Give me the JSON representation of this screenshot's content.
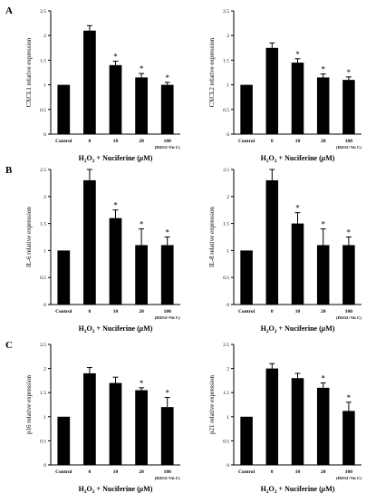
{
  "panel_letters": [
    "A",
    "B",
    "C"
  ],
  "chart_data": [
    {
      "type": "bar",
      "panel": "A",
      "ylabel": "CXCL1 relative expression",
      "xlabel": "H2O2 + Nuciferine (μM)",
      "categories": [
        "Control",
        "0",
        "10",
        "20",
        "100"
      ],
      "category_sublabels": [
        "",
        "",
        "",
        "",
        "(H2O2+Vit C)"
      ],
      "values": [
        1.0,
        2.1,
        1.4,
        1.15,
        1.0
      ],
      "errors": [
        0,
        0.1,
        0.08,
        0.08,
        0.05
      ],
      "significant": [
        false,
        false,
        true,
        true,
        true
      ],
      "ylim": [
        0,
        2.5
      ],
      "yticks": [
        "0",
        "0.5",
        "1",
        "1.5",
        "2",
        "2.5"
      ]
    },
    {
      "type": "bar",
      "panel": "A",
      "ylabel": "CXCL2 relative expression",
      "xlabel": "H2O2 + Nuciferine (μM)",
      "categories": [
        "Control",
        "0",
        "10",
        "20",
        "100"
      ],
      "category_sublabels": [
        "",
        "",
        "",
        "",
        "(H2O2+Vit C)"
      ],
      "values": [
        1.0,
        1.75,
        1.45,
        1.15,
        1.1
      ],
      "errors": [
        0,
        0.1,
        0.08,
        0.07,
        0.06
      ],
      "significant": [
        false,
        false,
        true,
        true,
        true
      ],
      "ylim": [
        0,
        2.5
      ],
      "yticks": [
        "0",
        "0.5",
        "1",
        "1.5",
        "2",
        "2.5"
      ]
    },
    {
      "type": "bar",
      "panel": "B",
      "ylabel": "IL-6 relative expression",
      "xlabel": "H2O2 + Nuciferine (μM)",
      "categories": [
        "Control",
        "0",
        "10",
        "20",
        "100"
      ],
      "category_sublabels": [
        "",
        "",
        "",
        "",
        "(H2O2+Vit C)"
      ],
      "values": [
        1.0,
        2.3,
        1.6,
        1.1,
        1.1
      ],
      "errors": [
        0,
        0.2,
        0.15,
        0.3,
        0.15
      ],
      "significant": [
        false,
        false,
        true,
        true,
        true
      ],
      "ylim": [
        0,
        2.5
      ],
      "yticks": [
        "0",
        "0.5",
        "1",
        "1.5",
        "2",
        "2.5"
      ]
    },
    {
      "type": "bar",
      "panel": "B",
      "ylabel": "IL-8 relative expression",
      "xlabel": "H2O2 + Nuciferine (μM)",
      "categories": [
        "Control",
        "0",
        "10",
        "20",
        "100"
      ],
      "category_sublabels": [
        "",
        "",
        "",
        "",
        "(H2O2+Vit C)"
      ],
      "values": [
        1.0,
        2.3,
        1.5,
        1.1,
        1.1
      ],
      "errors": [
        0,
        0.2,
        0.2,
        0.3,
        0.15
      ],
      "significant": [
        false,
        false,
        true,
        true,
        true
      ],
      "ylim": [
        0,
        2.5
      ],
      "yticks": [
        "0",
        "0.5",
        "1",
        "1.5",
        "2",
        "2.5"
      ]
    },
    {
      "type": "bar",
      "panel": "C",
      "ylabel": "p16 relative expression",
      "xlabel": "H2O2 + Nuciferine (μM)",
      "categories": [
        "Control",
        "0",
        "10",
        "20",
        "100"
      ],
      "category_sublabels": [
        "",
        "",
        "",
        "",
        "(H2O2+Vit C)"
      ],
      "values": [
        1.0,
        1.9,
        1.7,
        1.55,
        1.2
      ],
      "errors": [
        0,
        0.12,
        0.12,
        0.05,
        0.2
      ],
      "significant": [
        false,
        false,
        false,
        true,
        true
      ],
      "ylim": [
        0,
        2.5
      ],
      "yticks": [
        "0",
        "0.5",
        "1",
        "1.5",
        "2",
        "2.5"
      ]
    },
    {
      "type": "bar",
      "panel": "C",
      "ylabel": "p21 relative expression",
      "xlabel": "H2O2 + Nuciferine (μM)",
      "categories": [
        "Control",
        "0",
        "10",
        "20",
        "100"
      ],
      "category_sublabels": [
        "",
        "",
        "",
        "",
        "(H2O2+Vit C)"
      ],
      "values": [
        1.0,
        2.0,
        1.8,
        1.6,
        1.12
      ],
      "errors": [
        0,
        0.1,
        0.1,
        0.1,
        0.18
      ],
      "significant": [
        false,
        false,
        false,
        true,
        true
      ],
      "ylim": [
        0,
        2.5
      ],
      "yticks": [
        "0",
        "0.5",
        "1",
        "1.5",
        "2",
        "2.5"
      ]
    }
  ]
}
